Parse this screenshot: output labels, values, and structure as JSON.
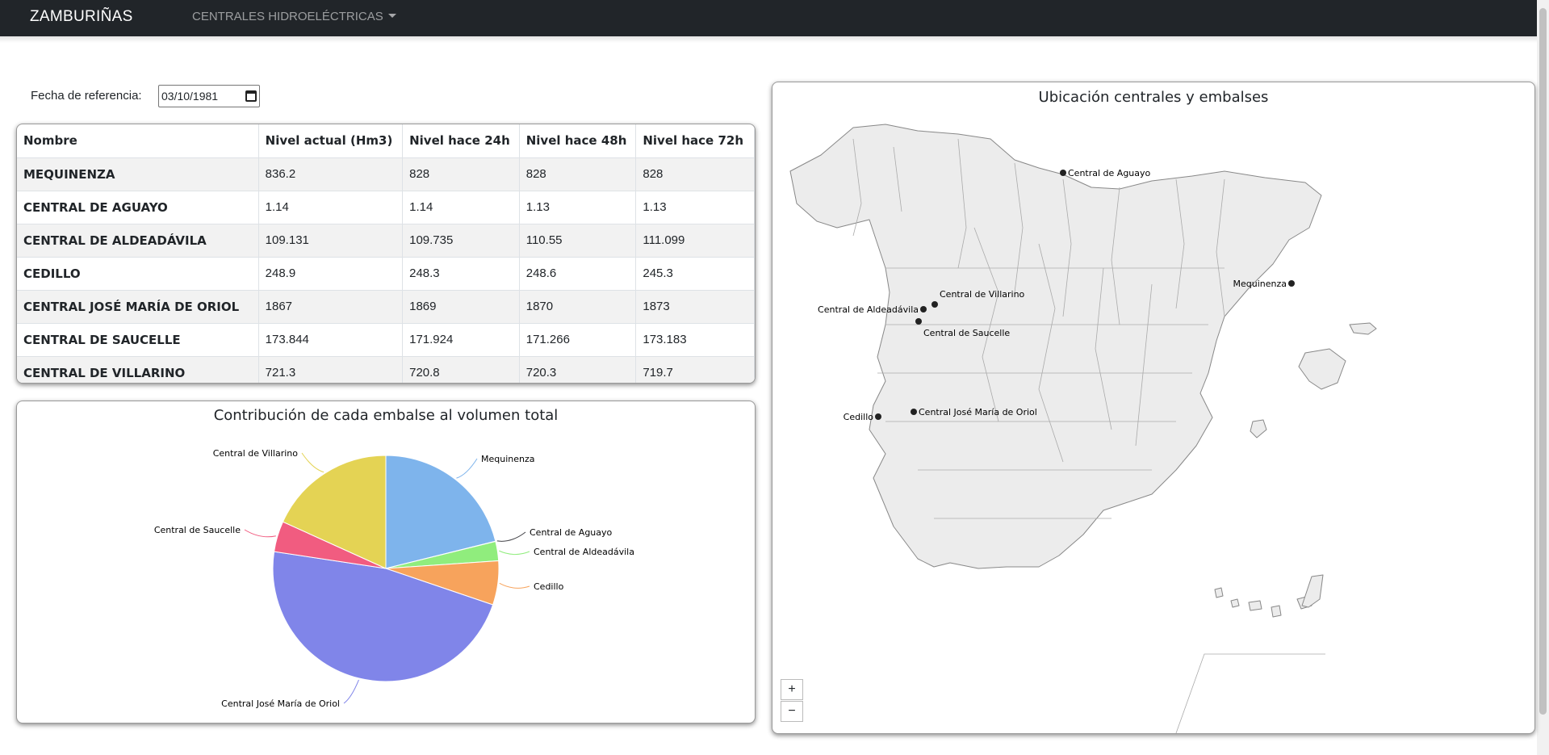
{
  "navbar": {
    "brand": "ZAMBURIÑAS",
    "dropdown_label": "CENTRALES HIDROELÉCTRICAS"
  },
  "filter": {
    "date_label": "Fecha de referencia:",
    "date_value": "03/10/1981"
  },
  "table": {
    "headers": [
      "Nombre",
      "Nivel actual (Hm3)",
      "Nivel hace 24h",
      "Nivel hace 48h",
      "Nivel hace 72h"
    ],
    "rows": [
      [
        "MEQUINENZA",
        "836.2",
        "828",
        "828",
        "828"
      ],
      [
        "CENTRAL DE AGUAYO",
        "1.14",
        "1.14",
        "1.13",
        "1.13"
      ],
      [
        "CENTRAL DE ALDEADÁVILA",
        "109.131",
        "109.735",
        "110.55",
        "111.099"
      ],
      [
        "CEDILLO",
        "248.9",
        "248.3",
        "248.6",
        "245.3"
      ],
      [
        "CENTRAL JOSÉ MARÍA DE ORIOL",
        "1867",
        "1869",
        "1870",
        "1873"
      ],
      [
        "CENTRAL DE SAUCELLE",
        "173.844",
        "171.924",
        "171.266",
        "173.183"
      ],
      [
        "CENTRAL DE VILLARINO",
        "721.3",
        "720.8",
        "720.3",
        "719.7"
      ]
    ]
  },
  "chart_data": {
    "type": "pie",
    "title": "Contribución de cada embalse al volumen total",
    "slices": [
      {
        "label": "Mequinenza",
        "value": 836.2,
        "color": "#7eb4ec"
      },
      {
        "label": "Central de Aguayo",
        "value": 1.14,
        "color": "#434348"
      },
      {
        "label": "Central de Aldeadávila",
        "value": 109.131,
        "color": "#90ed7d"
      },
      {
        "label": "Cedillo",
        "value": 248.9,
        "color": "#f7a35c"
      },
      {
        "label": "Central José María de Oriol",
        "value": 1867,
        "color": "#8085e9"
      },
      {
        "label": "Central de Saucelle",
        "value": 173.844,
        "color": "#f15c80"
      },
      {
        "label": "Central de Villarino",
        "value": 721.3,
        "color": "#e4d354"
      }
    ]
  },
  "map": {
    "title": "Ubicación centrales y embalses",
    "markers": [
      {
        "label": "Central de Aguayo"
      },
      {
        "label": "Mequinenza"
      },
      {
        "label": "Central de Villarino"
      },
      {
        "label": "Central de Aldeadávila"
      },
      {
        "label": "Central de Saucelle"
      },
      {
        "label": "Central José María de Oriol"
      },
      {
        "label": "Cedillo"
      }
    ],
    "zoom_in": "+",
    "zoom_out": "−"
  }
}
